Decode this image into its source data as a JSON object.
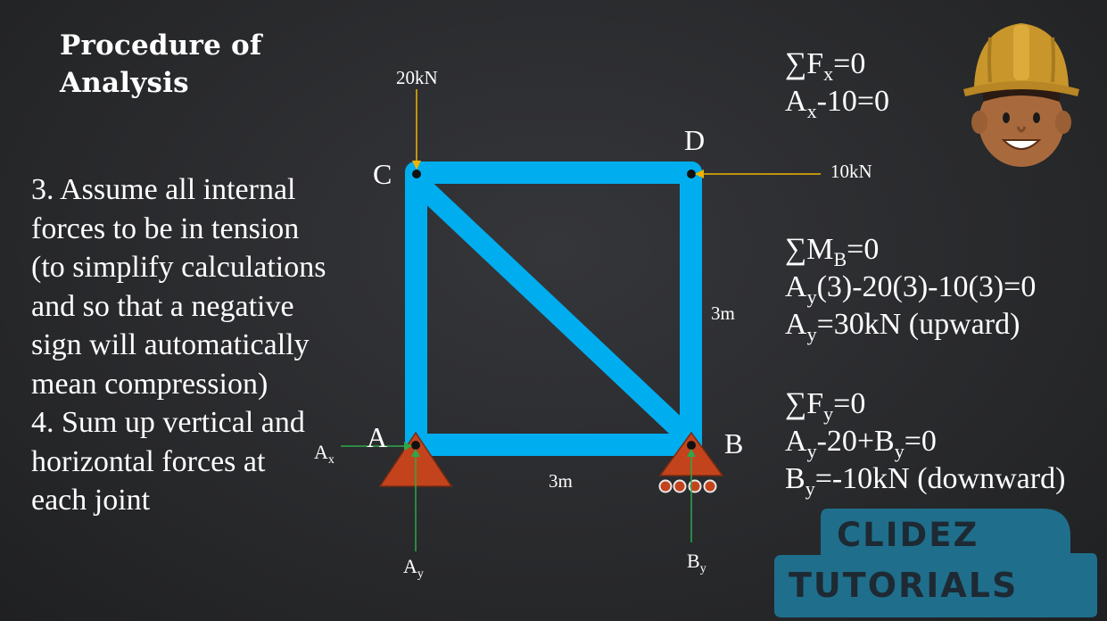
{
  "title_line1": "Procedure of",
  "title_line2": "Analysis",
  "steps": [
    "3. Assume all internal",
    "forces to be in tension",
    "(to simplify calculations",
    "and so that a negative",
    "sign will automatically",
    "mean compression)",
    "4. Sum up vertical and",
    "horizontal forces at",
    "each joint"
  ],
  "diagram": {
    "node_labels": {
      "A": "A",
      "B": "B",
      "C": "C",
      "D": "D"
    },
    "load_vertical": "20kN",
    "load_horizontal": "10kN",
    "dim_bottom": "3m",
    "dim_right": "3m",
    "reaction_ax": {
      "main": "A",
      "sub": "x"
    },
    "reaction_ay": {
      "main": "A",
      "sub": "y"
    },
    "reaction_by": {
      "main": "B",
      "sub": "y"
    },
    "colors": {
      "member": "#00aeef",
      "support": "#c3441c",
      "load_arrow": "#f0b400",
      "reaction_arrow": "#2ea84a"
    }
  },
  "equations": {
    "fx_1": {
      "a": "∑F",
      "sub": "x",
      "b": "=0"
    },
    "fx_2": {
      "a": "A",
      "sub": "x",
      "b": "-10=0"
    },
    "mb_1": {
      "a": "∑M",
      "sub": "B",
      "b": "=0"
    },
    "mb_2": {
      "a": "A",
      "sub": "y",
      "b": "(3)-20(3)-10(3)=0"
    },
    "mb_3": {
      "a": "A",
      "sub": "y",
      "b": "=30kN (upward)"
    },
    "fy_1": {
      "a": "∑F",
      "sub": "y",
      "b": "=0"
    },
    "fy_2": {
      "a": "A",
      "sub": "y",
      "b": "-20+B",
      "sub2": "y",
      "c": "=0"
    },
    "fy_3": {
      "a": "B",
      "sub": "y",
      "b": "=-10kN (downward)"
    }
  },
  "logo": {
    "line1": "CLIDEZ",
    "line2": "TUTORIALS",
    "icon": "engineer-mascot-icon"
  }
}
